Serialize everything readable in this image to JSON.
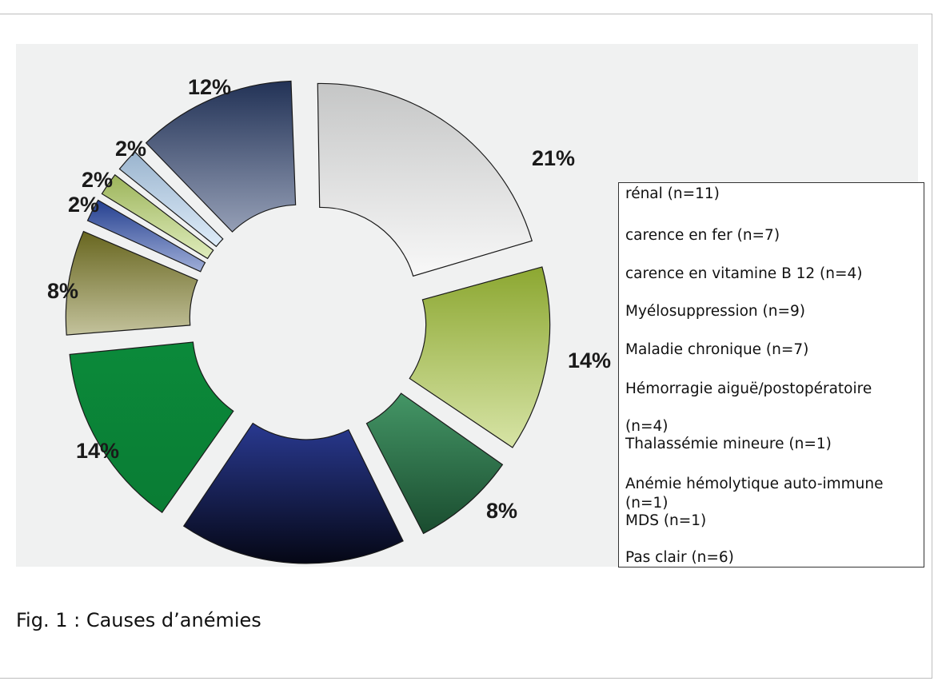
{
  "chart_data": {
    "type": "pie",
    "style": "exploded-donut",
    "slices": [
      {
        "label": "rénal (n=11)",
        "value": 21,
        "display": "21%",
        "color": "#cfd0d0"
      },
      {
        "label": "carence en fer (n=7)",
        "value": 14,
        "display": "14%",
        "color": "#a5c43a"
      },
      {
        "label": "carence en vitamine B 12 (n=4)",
        "value": 8,
        "display": "8%",
        "color": "#2f8a55"
      },
      {
        "label": "Myélosuppression (n=9)",
        "value": 17,
        "display": "",
        "color": "#1e2f8a"
      },
      {
        "label": "Maladie chronique (n=7)",
        "value": 14,
        "display": "14%",
        "color": "#0b8a3a"
      },
      {
        "label": "Hémorragie aiguë/postopératoire (n=4)",
        "value": 8,
        "display": "8%",
        "color": "#7a7824"
      },
      {
        "label": "Thalassémie mineure (n=1)",
        "value": 2,
        "display": "2%",
        "color": "#2a4aa8"
      },
      {
        "label": "Anémie hémolytique auto-immune (n=1)",
        "value": 2,
        "display": "2%",
        "color": "#b7d46a"
      },
      {
        "label": "MDS (n=1)",
        "value": 2,
        "display": "2%",
        "color": "#b5d4f2"
      },
      {
        "label": "Pas clair (n=6)",
        "value": 12,
        "display": "12%",
        "color": "#2a3f6c"
      }
    ],
    "legend_placement": "right",
    "title": "Fig. 1 : Causes d’anémies"
  },
  "legend": {
    "items": [
      "rénal (n=11)",
      "carence en fer (n=7)",
      "carence en vitamine B 12 (n=4)",
      "Myélosuppression (n=9)",
      "Maladie chronique (n=7)",
      "Hémorragie aiguë/postopératoire",
      "(n=4)",
      "Thalassémie mineure (n=1)",
      "Anémie hémolytique auto-immune",
      "(n=1)",
      "MDS (n=1)",
      "Pas clair (n=6)"
    ]
  },
  "caption": "Fig. 1 : Causes d’anémies"
}
